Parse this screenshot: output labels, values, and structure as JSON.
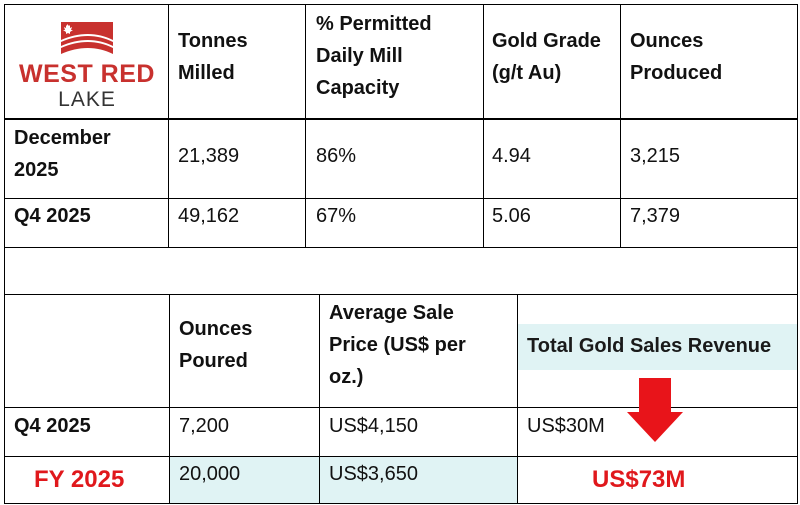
{
  "logo": {
    "name_line1": "WEST RED",
    "name_line2": "LAKE",
    "brand_red": "#c8312e",
    "icon": "maple-leaf-waves-logo"
  },
  "table1": {
    "headers": [
      [
        "Tonnes",
        "Milled"
      ],
      [
        "% Permitted",
        "Daily Mill",
        "Capacity"
      ],
      [
        "Gold Grade",
        "(g/t Au)"
      ],
      [
        "Ounces",
        "Produced"
      ]
    ],
    "rows": [
      {
        "label": [
          "December",
          "2025"
        ],
        "values": [
          "21,389",
          "86%",
          "4.94",
          "3,215"
        ]
      },
      {
        "label": [
          "Q4 2025"
        ],
        "values": [
          "49,162",
          "67%",
          "5.06",
          "7,379"
        ]
      }
    ]
  },
  "table2": {
    "headers": [
      [
        "Ounces",
        "Poured"
      ],
      [
        "Average Sale",
        "Price (US$ per",
        "oz.)"
      ],
      [
        "Total Gold Sales Revenue"
      ]
    ],
    "rows": [
      {
        "label": "Q4 2025",
        "values": [
          "7,200",
          "US$4,150",
          "US$30M"
        ]
      },
      {
        "label": "FY 2025",
        "values": [
          "20,000",
          "US$3,650",
          "US$73M"
        ]
      }
    ]
  },
  "colors": {
    "highlight": "#e0f3f4",
    "accent_red": "#e0181c",
    "arrow_red": "#e8141a"
  }
}
